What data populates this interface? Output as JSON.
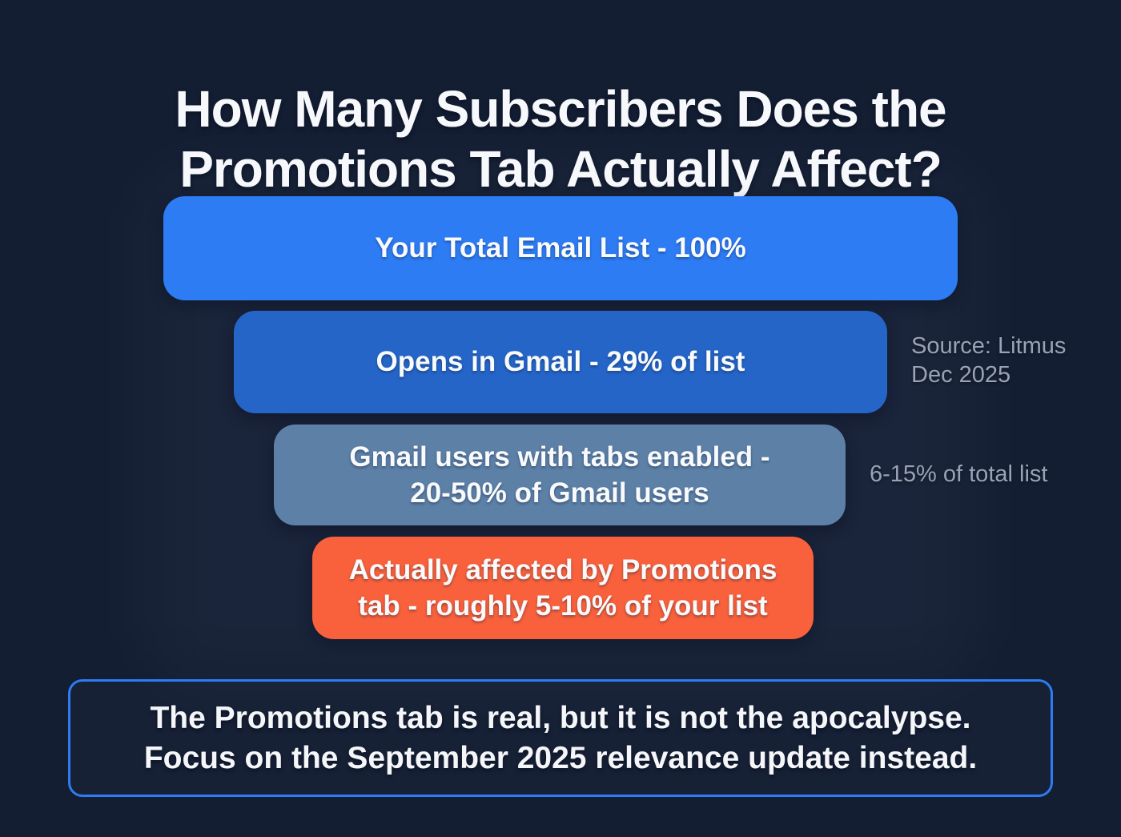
{
  "page": {
    "background_color": "#141e33",
    "accent_blue": "#2e7cf4",
    "text_white": "#f6f8fb",
    "annotation_gray": "#99a3b4"
  },
  "title": {
    "line1": "How Many Subscribers Does the",
    "line2": "Promotions Tab Actually Affect?"
  },
  "chart_data": {
    "type": "funnel",
    "title": "How Many Subscribers Does the Promotions Tab Actually Affect?",
    "legend_position": "none",
    "grid": false,
    "stages": [
      {
        "name": "total-email-list",
        "lines": [
          "Your Total Email List - 100%"
        ],
        "value_pct_of_list": 100,
        "relative_width_pct": 100,
        "color": "#2e7cf4",
        "side_note": null
      },
      {
        "name": "opens-in-gmail",
        "lines": [
          "Opens in Gmail - 29% of list"
        ],
        "value_pct_of_list": 29,
        "relative_width_pct": 82,
        "color": "#2565c8",
        "side_note": "Source: Litmus Dec 2025"
      },
      {
        "name": "gmail-users-tabs-enabled",
        "lines": [
          "Gmail users with tabs enabled -",
          "20-50% of Gmail users"
        ],
        "value_range": "20-50% of Gmail users",
        "value_pct_of_list_range": [
          6,
          15
        ],
        "relative_width_pct": 72,
        "color": "#5d80a7",
        "side_note": "6-15% of total list"
      },
      {
        "name": "affected-by-promotions-tab",
        "lines": [
          "Actually affected by Promotions",
          "tab - roughly 5-10% of your list"
        ],
        "value_range": "roughly 5-10% of your list",
        "value_pct_of_list_range": [
          5,
          10
        ],
        "relative_width_pct": 63,
        "color": "#f8613c",
        "side_note": null
      }
    ],
    "takeaway": "The Promotions tab is real, but it is not the apocalypse. Focus on the September 2025 relevance update instead."
  },
  "annotations": {
    "source_line1": "Source: Litmus",
    "source_line2": "Dec 2025",
    "tabs_share": "6-15% of total list"
  },
  "takeaway_box": {
    "line1": "The Promotions tab is real, but it is not the apocalypse.",
    "line2": "Focus on the September 2025 relevance update instead.",
    "border_color": "#2d7cf2"
  }
}
